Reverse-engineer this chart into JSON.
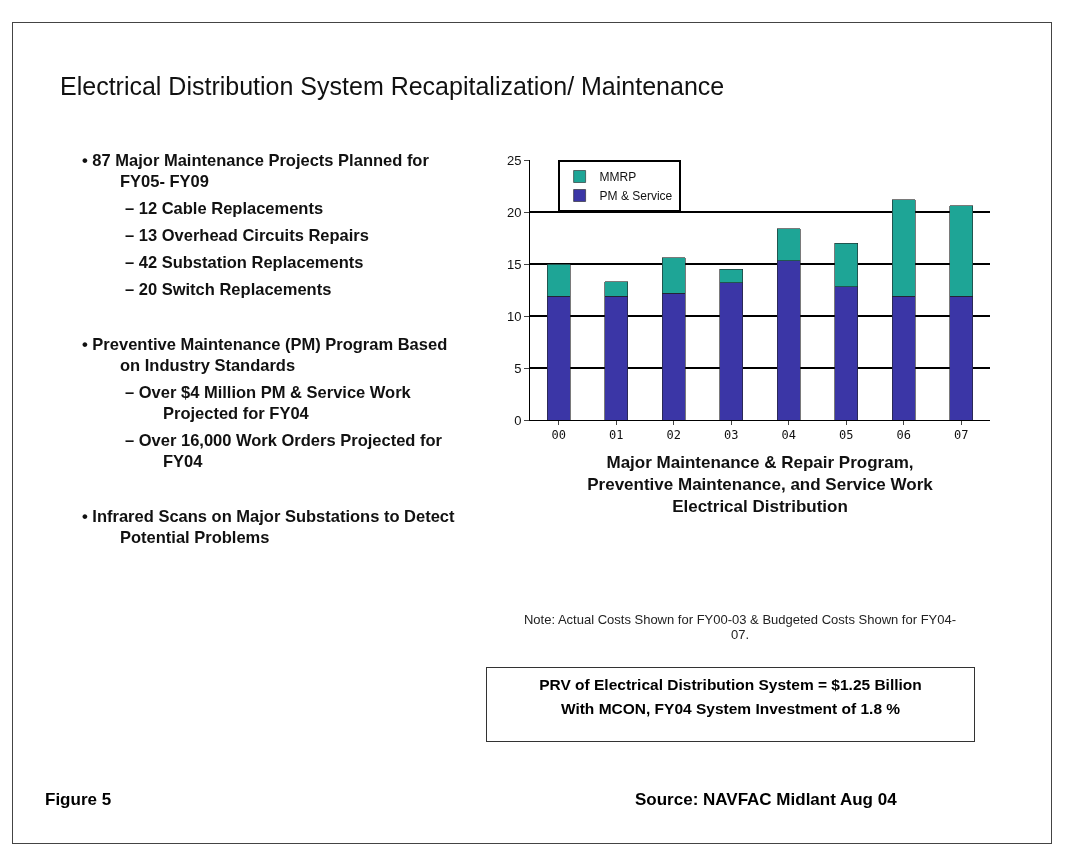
{
  "chart_data": {
    "type": "bar",
    "title": "Electrical Distribution System Recapitalization/ Maintenance",
    "xlabel": "Major Maintenance & Repair Program,\nPreventive Maintenance, and Service Work\nElectrical Distribution",
    "categories": [
      "00",
      "01",
      "02",
      "03",
      "04",
      "05",
      "06",
      "07"
    ],
    "stacked": true,
    "series": [
      {
        "name": "PM & Service",
        "color": "#3b36a6",
        "values": [
          11.9,
          11.9,
          12.2,
          13.2,
          15.3,
          12.8,
          11.9,
          11.9
        ]
      },
      {
        "name": "MMRP",
        "color": "#1ea596",
        "values": [
          3.1,
          1.4,
          3.4,
          1.3,
          3.1,
          4.2,
          9.3,
          8.7
        ]
      }
    ],
    "ylim": [
      0,
      25
    ],
    "yticks": [
      0,
      5,
      10,
      15,
      20,
      25
    ],
    "grid": "y",
    "legend": "top left",
    "annotations": [
      "• 87 Major Maintenance Projects Planned for FY05- FY09",
      "– 12 Cable Replacements",
      "– 13 Overhead Circuits Repairs",
      "– 42 Substation Replacements",
      "– 20 Switch Replacements",
      "• Preventive Maintenance (PM) Program Based on Industry Standards",
      "– Over $4 Million PM & Service Work Projected for FY04",
      "– Over 16,000 Work Orders Projected for FY04",
      "• Infrared Scans on Major Substations to Detect Potential Problems",
      "Note:  Actual Costs Shown for FY00-03 & Budgeted Costs Shown for FY04-07.",
      "PRV of Electrical Distribution System = $1.25 Billion",
      "With MCON, FY04 System Investment of 1.8 %",
      "Figure 5",
      "Source: NAVFAC Midlant Aug 04"
    ]
  }
}
